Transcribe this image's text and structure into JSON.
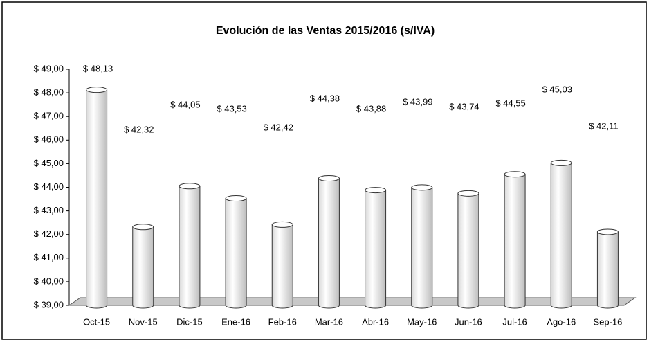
{
  "chart_data": {
    "type": "bar",
    "title": "Evolución de las Ventas 2015/2016 (s/IVA)",
    "categories": [
      "Oct-15",
      "Nov-15",
      "Dic-15",
      "Ene-16",
      "Feb-16",
      "Mar-16",
      "Abr-16",
      "May-16",
      "Jun-16",
      "Jul-16",
      "Ago-16",
      "Sep-16"
    ],
    "values": [
      48.13,
      42.32,
      44.05,
      43.53,
      42.42,
      44.38,
      43.88,
      43.99,
      43.74,
      44.55,
      45.03,
      42.11
    ],
    "value_labels": [
      "$ 48,13",
      "$ 42,32",
      "$ 44,05",
      "$ 43,53",
      "$ 42,42",
      "$ 44,38",
      "$ 43,88",
      "$ 43,99",
      "$ 43,74",
      "$ 44,55",
      "$ 45,03",
      "$ 42,11"
    ],
    "color": "#ffffff",
    "ylim": [
      39,
      49
    ],
    "yticks": [
      {
        "value": 39,
        "label": "$ 39,00"
      },
      {
        "value": 40,
        "label": "$ 40,00"
      },
      {
        "value": 41,
        "label": "$ 41,00"
      },
      {
        "value": 42,
        "label": "$ 42,00"
      },
      {
        "value": 43,
        "label": "$ 43,00"
      },
      {
        "value": 44,
        "label": "$ 44,00"
      },
      {
        "value": 45,
        "label": "$ 45,00"
      },
      {
        "value": 46,
        "label": "$ 46,00"
      },
      {
        "value": 47,
        "label": "$ 47,00"
      },
      {
        "value": 48,
        "label": "$ 48,00"
      },
      {
        "value": 49,
        "label": "$ 49,00"
      }
    ],
    "grid": false
  }
}
